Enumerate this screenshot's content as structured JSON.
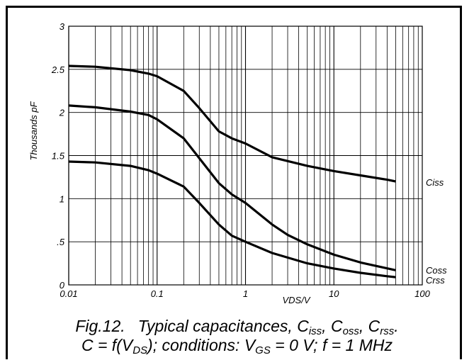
{
  "chart_data": {
    "type": "line",
    "ylabel": "Thousands pF",
    "xlabel": "VDS/V",
    "x_scale": "log",
    "xlim": [
      0.01,
      100
    ],
    "ylim": [
      0,
      3
    ],
    "grid": true,
    "x_ticks": [
      {
        "value": 0.01,
        "label": "0.01"
      },
      {
        "value": 0.1,
        "label": "0.1"
      },
      {
        "value": 1,
        "label": "1"
      },
      {
        "value": 10,
        "label": "10"
      },
      {
        "value": 100,
        "label": "100"
      }
    ],
    "y_ticks": [
      {
        "value": 0,
        "label": "0"
      },
      {
        "value": 0.5,
        "label": ".5"
      },
      {
        "value": 1,
        "label": "1"
      },
      {
        "value": 1.5,
        "label": "1.5"
      },
      {
        "value": 2,
        "label": "2"
      },
      {
        "value": 2.5,
        "label": "2.5"
      },
      {
        "value": 3,
        "label": "3"
      }
    ],
    "series": [
      {
        "name": "Ciss",
        "x": [
          0.01,
          0.02,
          0.05,
          0.08,
          0.1,
          0.2,
          0.3,
          0.5,
          0.7,
          1,
          2,
          5,
          10,
          20,
          40,
          50
        ],
        "y": [
          2.54,
          2.53,
          2.49,
          2.45,
          2.42,
          2.25,
          2.05,
          1.78,
          1.7,
          1.64,
          1.48,
          1.38,
          1.32,
          1.27,
          1.22,
          1.2
        ]
      },
      {
        "name": "Coss",
        "x": [
          0.01,
          0.02,
          0.05,
          0.08,
          0.1,
          0.2,
          0.3,
          0.5,
          0.7,
          1,
          2,
          3,
          5,
          10,
          20,
          50
        ],
        "y": [
          2.08,
          2.06,
          2.01,
          1.97,
          1.92,
          1.7,
          1.47,
          1.18,
          1.05,
          0.95,
          0.7,
          0.58,
          0.47,
          0.35,
          0.26,
          0.17
        ]
      },
      {
        "name": "Crss",
        "x": [
          0.01,
          0.02,
          0.05,
          0.08,
          0.1,
          0.2,
          0.3,
          0.5,
          0.7,
          1,
          2,
          5,
          10,
          20,
          40,
          50
        ],
        "y": [
          1.43,
          1.42,
          1.38,
          1.33,
          1.29,
          1.14,
          0.95,
          0.7,
          0.57,
          0.5,
          0.37,
          0.25,
          0.19,
          0.14,
          0.1,
          0.09
        ]
      }
    ],
    "annotations": [
      "Ciss",
      "Coss",
      "Crss"
    ]
  },
  "caption": {
    "line1": {
      "prefix": "Fig.12.",
      "text": "Typical capacitances, C",
      "sub1": "iss",
      "sep1": ", C",
      "sub2": "oss",
      "sep2": ", C",
      "sub3": "rss",
      "end": "."
    },
    "line2": {
      "a": "C = f(V",
      "sub1": "DS",
      "b": "); conditions: V",
      "sub2": "GS",
      "c": " = 0 V; f = 1 MHz"
    }
  },
  "colors": {
    "line": "#000000",
    "grid": "#000000",
    "background": "#ffffff"
  }
}
